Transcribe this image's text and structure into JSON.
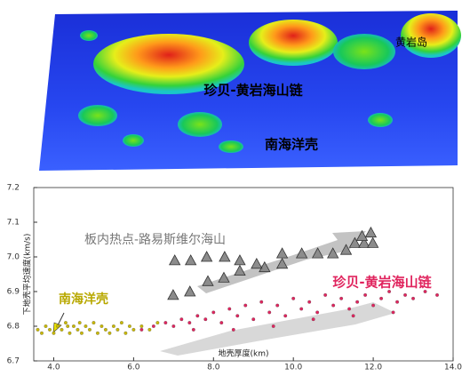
{
  "terrain": {
    "labels": [
      "黄岩岛",
      "珍贝-黄岩海山链",
      "南海洋壳"
    ]
  },
  "chart_data": {
    "type": "scatter",
    "x_label": "地壳厚度(km)",
    "y_label": "下地壳平均速度(km/s)",
    "xlim": [
      3.5,
      14.0
    ],
    "ylim": [
      6.7,
      7.2
    ],
    "xticks": [
      {
        "value": 4,
        "label": "4.0"
      },
      {
        "value": 6,
        "label": "6.0"
      },
      {
        "value": 8,
        "label": "8.0"
      },
      {
        "value": 10,
        "label": "10.0"
      },
      {
        "value": 12,
        "label": "12.0"
      },
      {
        "value": 14,
        "label": "14.0"
      }
    ],
    "yticks": [
      {
        "value": 6.7,
        "label": "6.7"
      },
      {
        "value": 6.8,
        "label": "6.8"
      },
      6.9,
      {
        "value": 7,
        "label": "7.0"
      },
      7.1,
      7.2
    ],
    "series": [
      {
        "name": "板内热点-路易斯维尔海山",
        "color": "#8c8c8c",
        "marker": "triangle",
        "x": [
          6.99,
          7.41,
          7.86,
          8.26,
          8.66,
          9.28,
          9.72,
          7.03,
          7.43,
          7.83,
          8.28,
          8.66,
          9.08,
          9.72,
          10.21,
          10.61,
          10.99,
          11.32,
          11.54,
          11.77,
          11.99,
          11.72,
          11.94
        ],
        "values": [
          6.89,
          6.9,
          6.93,
          6.94,
          6.96,
          6.97,
          6.98,
          6.99,
          6.99,
          7.0,
          7.0,
          6.99,
          6.98,
          7.01,
          7.01,
          7.01,
          7.01,
          7.02,
          7.04,
          7.04,
          7.04,
          7.06,
          7.07
        ]
      },
      {
        "name": "珍贝-黄岩海山链",
        "color": "#e0245e",
        "marker": "dot",
        "x": [
          6.2,
          6.5,
          6.8,
          7.0,
          7.2,
          7.4,
          7.6,
          7.8,
          8.0,
          8.2,
          8.4,
          8.6,
          8.8,
          9.0,
          9.2,
          9.4,
          9.6,
          9.8,
          10.0,
          10.2,
          10.4,
          10.6,
          10.8,
          11.0,
          11.2,
          11.4,
          11.6,
          11.8,
          12.0,
          12.2,
          12.4,
          12.6,
          12.8,
          13.0,
          13.3,
          13.6,
          9.5,
          10.5,
          8.5,
          11.5,
          7.5,
          12.5
        ],
        "values": [
          6.79,
          6.8,
          6.81,
          6.8,
          6.82,
          6.81,
          6.83,
          6.82,
          6.84,
          6.81,
          6.85,
          6.83,
          6.86,
          6.82,
          6.87,
          6.84,
          6.86,
          6.83,
          6.88,
          6.85,
          6.87,
          6.84,
          6.89,
          6.86,
          6.88,
          6.85,
          6.87,
          6.89,
          6.86,
          6.88,
          6.9,
          6.87,
          6.89,
          6.88,
          6.9,
          6.89,
          6.8,
          6.82,
          6.79,
          6.83,
          6.79,
          6.84
        ]
      },
      {
        "name": "南海洋壳",
        "color": "#c9b800",
        "marker": "dot",
        "x": [
          3.6,
          3.7,
          3.8,
          3.9,
          4.0,
          4.1,
          4.2,
          4.3,
          4.4,
          4.5,
          4.6,
          4.7,
          4.8,
          4.9,
          5.0,
          5.1,
          5.2,
          5.3,
          5.4,
          5.5,
          5.6,
          5.7,
          5.8,
          5.9,
          6.0,
          6.2,
          6.4,
          6.6,
          4.35,
          4.65
        ],
        "values": [
          6.79,
          6.78,
          6.8,
          6.79,
          6.78,
          6.8,
          6.79,
          6.81,
          6.78,
          6.8,
          6.79,
          6.78,
          6.8,
          6.79,
          6.81,
          6.78,
          6.8,
          6.79,
          6.78,
          6.8,
          6.79,
          6.81,
          6.78,
          6.8,
          6.79,
          6.8,
          6.79,
          6.81,
          6.8,
          6.81
        ]
      }
    ]
  }
}
